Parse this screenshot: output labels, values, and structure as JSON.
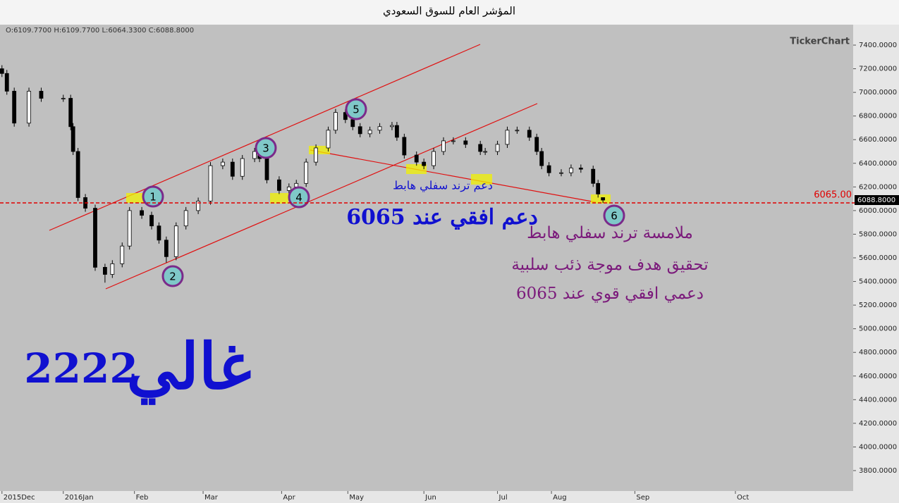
{
  "chart_data": {
    "type": "candlestick",
    "title": "المؤشر العام للسوق السعودي",
    "ohlc_header": "O:6109.7700  H:6109.7700  L:6064.3300  C:6088.8000",
    "brand": "TickerChart",
    "x": [
      6,
      8,
      11,
      17,
      22,
      31,
      34,
      35,
      37,
      40,
      44,
      48,
      51,
      55,
      58,
      63,
      67,
      70,
      73,
      77,
      81,
      86,
      91,
      96,
      100,
      104,
      109,
      111,
      114,
      119,
      123,
      126,
      130,
      134,
      139,
      142,
      146,
      149,
      152,
      156,
      160,
      165,
      167,
      170,
      175,
      178,
      182,
      186,
      190,
      195,
      201,
      203,
      208,
      212,
      216,
      221,
      224,
      226,
      229,
      234,
      238,
      242,
      247,
      249,
      251
    ],
    "open": [
      7200,
      7160,
      7010,
      6740,
      7010,
      6950,
      6950,
      6710,
      6500,
      6110,
      6020,
      5520,
      5460,
      5550,
      5700,
      6000,
      5960,
      5870,
      5750,
      5610,
      5870,
      6000,
      6080,
      6380,
      6410,
      6290,
      6440,
      6500,
      6440,
      6260,
      6170,
      6200,
      6230,
      6410,
      6530,
      6680,
      6830,
      6770,
      6710,
      6650,
      6680,
      6710,
      6720,
      6620,
      6470,
      6410,
      6380,
      6500,
      6590,
      6590,
      6560,
      6500,
      6500,
      6560,
      6680,
      6680,
      6620,
      6500,
      6380,
      6320,
      6320,
      6360,
      6350,
      6230,
      6109.77
    ],
    "high": [
      7230,
      7190,
      7040,
      7040,
      7040,
      6980,
      6980,
      6740,
      6530,
      6140,
      6050,
      5550,
      5580,
      5730,
      6030,
      6030,
      5990,
      5900,
      5780,
      5900,
      6030,
      6110,
      6410,
      6440,
      6440,
      6470,
      6530,
      6530,
      6470,
      6290,
      6230,
      6260,
      6440,
      6560,
      6710,
      6860,
      6860,
      6800,
      6740,
      6710,
      6740,
      6750,
      6750,
      6650,
      6500,
      6440,
      6530,
      6620,
      6620,
      6620,
      6590,
      6530,
      6590,
      6710,
      6710,
      6710,
      6650,
      6530,
      6410,
      6350,
      6390,
      6390,
      6380,
      6260,
      6109.77
    ],
    "low": [
      7130,
      6980,
      6710,
      6710,
      6920,
      6920,
      6680,
      6470,
      6080,
      5990,
      5490,
      5390,
      5430,
      5520,
      5670,
      5930,
      5840,
      5720,
      5560,
      5580,
      5840,
      5970,
      6050,
      6350,
      6260,
      6260,
      6410,
      6410,
      6230,
      6140,
      6140,
      6170,
      6200,
      6380,
      6500,
      6650,
      6740,
      6680,
      6620,
      6620,
      6650,
      6680,
      6590,
      6440,
      6380,
      6350,
      6350,
      6470,
      6560,
      6530,
      6470,
      6470,
      6470,
      6530,
      6650,
      6590,
      6470,
      6350,
      6290,
      6290,
      6290,
      6320,
      6200,
      6110,
      6064.33
    ],
    "close": [
      7160,
      7010,
      6740,
      7010,
      6950,
      6950,
      6710,
      6500,
      6110,
      6020,
      5520,
      5460,
      5550,
      5700,
      6000,
      5960,
      5870,
      5750,
      5610,
      5870,
      6000,
      6080,
      6380,
      6410,
      6290,
      6440,
      6500,
      6440,
      6260,
      6170,
      6200,
      6230,
      6410,
      6530,
      6680,
      6830,
      6770,
      6710,
      6650,
      6680,
      6710,
      6720,
      6620,
      6470,
      6410,
      6380,
      6500,
      6590,
      6590,
      6560,
      6500,
      6500,
      6560,
      6680,
      6680,
      6620,
      6500,
      6380,
      6320,
      6320,
      6360,
      6350,
      6230,
      6140,
      6088.8
    ],
    "last_price_label": "6088.8000",
    "up_color": "#ffffff",
    "down_color": "#000000",
    "xlim": [
      5.2,
      353
    ],
    "xticks": [
      {
        "value": 6,
        "label": "2015Dec"
      },
      {
        "value": 31,
        "label": "2016Jan"
      },
      {
        "value": 60,
        "label": "Feb"
      },
      {
        "value": 88,
        "label": "Mar"
      },
      {
        "value": 120,
        "label": "Apr"
      },
      {
        "value": 147,
        "label": "May"
      },
      {
        "value": 178,
        "label": "Jun"
      },
      {
        "value": 208,
        "label": "Jul"
      },
      {
        "value": 230,
        "label": "Aug"
      },
      {
        "value": 264,
        "label": "Sep"
      },
      {
        "value": 305,
        "label": "Oct"
      }
    ],
    "ylim": [
      3627,
      7573
    ],
    "yticks": [
      {
        "value": 3800,
        "label": "3800.0000"
      },
      {
        "value": 4000,
        "label": "4000.0000"
      },
      {
        "value": 4200,
        "label": "4200.0000"
      },
      {
        "value": 4400,
        "label": "4400.0000"
      },
      {
        "value": 4600,
        "label": "4600.0000"
      },
      {
        "value": 4800,
        "label": "4800.0000"
      },
      {
        "value": 5000,
        "label": "5000.0000"
      },
      {
        "value": 5200,
        "label": "5200.0000"
      },
      {
        "value": 5400,
        "label": "5400.0000"
      },
      {
        "value": 5600,
        "label": "5600.0000"
      },
      {
        "value": 5800,
        "label": "5800.0000"
      },
      {
        "value": 6000,
        "label": "6000.0000"
      },
      {
        "value": 6200,
        "label": "6200.0000"
      },
      {
        "value": 6400,
        "label": "6400.0000"
      },
      {
        "value": 6600,
        "label": "6600.0000"
      },
      {
        "value": 6800,
        "label": "6800.0000"
      },
      {
        "value": 7000,
        "label": "7000.0000"
      },
      {
        "value": 7200,
        "label": "7200.0000"
      },
      {
        "value": 7400,
        "label": "7400.0000"
      }
    ],
    "support_line": {
      "value": 6065,
      "label": "6065.00",
      "color": "#e00000"
    },
    "wave_labels": [
      "1",
      "2",
      "3",
      "4",
      "5",
      "6"
    ],
    "annotations": [
      "دعم ترند سفلي هابط",
      "دعم افقي عند 6065",
      "ملامسة ترند سفلي هابط",
      "تحقيق هدف موجة ذئب سلبية",
      "دعمي افقي قوي عند 6065"
    ],
    "signature_name": "غالي",
    "signature_number": "2222"
  }
}
